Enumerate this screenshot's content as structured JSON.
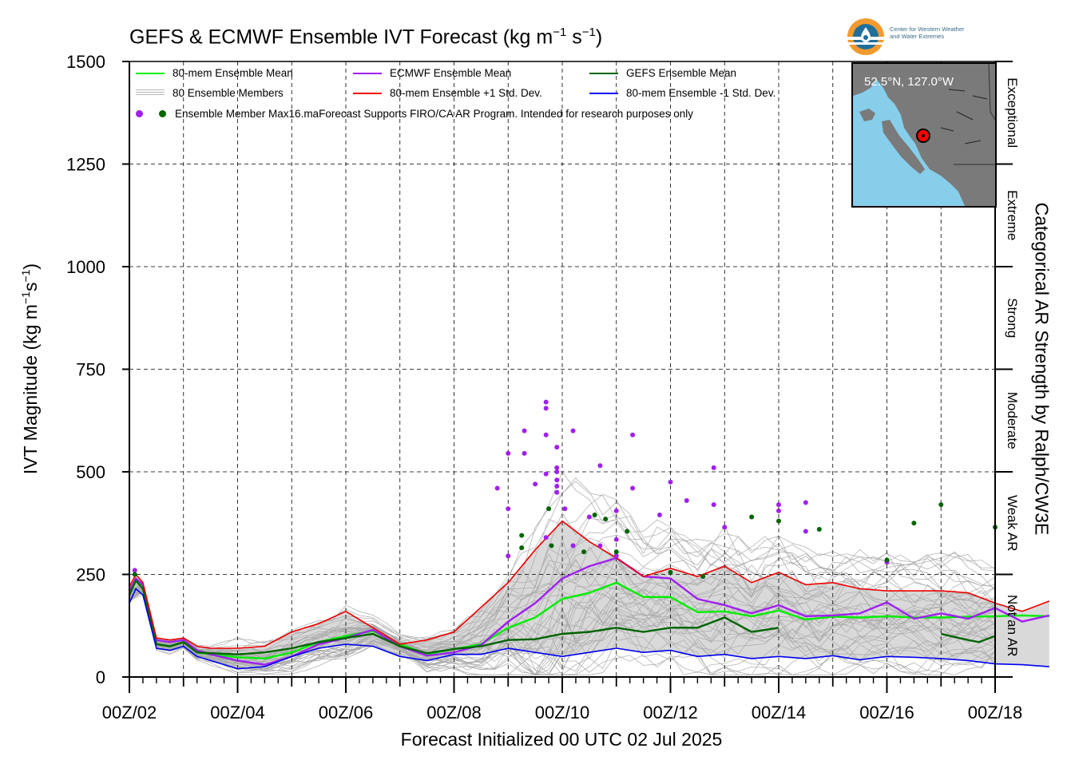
{
  "chart_data": {
    "type": "line",
    "title": "GEFS & ECMWF Ensemble IVT Forecast (kg m",
    "title_unit_exp1": "−1",
    "title_mid": " s",
    "title_unit_exp2": "−1",
    "title_end": ")",
    "xlabel": "Forecast Initialized 00 UTC 02 Jul 2025",
    "ylabel_main": "IVT Magnitude (kg m",
    "ylabel_exp1": "−1",
    "ylabel_mid": "s",
    "ylabel_exp2": "−1",
    "ylabel_end": ")",
    "right_label": "Categorical AR Strength by Ralph/CW3E",
    "x_ticks": [
      "00Z/02",
      "00Z/04",
      "00Z/06",
      "00Z/08",
      "00Z/10",
      "00Z/12",
      "00Z/14",
      "00Z/16",
      "00Z/18"
    ],
    "x_range_days": [
      0,
      16
    ],
    "ylim": [
      0,
      1500
    ],
    "y_ticks": [
      0,
      250,
      500,
      750,
      1000,
      1250,
      1500
    ],
    "grid": true,
    "categories_ar": [
      {
        "label": "Not an AR",
        "min": 0,
        "max": 250
      },
      {
        "label": "Weak AR",
        "min": 250,
        "max": 500
      },
      {
        "label": "Moderate",
        "min": 500,
        "max": 750
      },
      {
        "label": "Strong",
        "min": 750,
        "max": 1000
      },
      {
        "label": "Extreme",
        "min": 1000,
        "max": 1250
      },
      {
        "label": "Exceptional",
        "min": 1250,
        "max": 1500
      }
    ],
    "legend": {
      "mean80": "80-mem Ensemble Mean",
      "members": "80 Ensemble Members",
      "maxdots": "Ensemble Member Max16.maForecast Supports FIRO/CA AR Program. Intended for research purposes only",
      "ecmwf": "ECMWF Ensemble Mean",
      "plus1": "80-mem Ensemble +1 Std. Dev.",
      "gefs": "GEFS Ensemble Mean",
      "minus1": "80-mem Ensemble -1 Std. Dev."
    },
    "series": [
      {
        "name": "80-mem Ensemble Mean",
        "color": "#00ee00",
        "x": [
          0,
          0.12,
          0.25,
          0.5,
          0.75,
          1,
          1.25,
          1.5,
          2,
          2.5,
          3,
          3.5,
          4,
          4.5,
          5,
          5.5,
          6,
          6.5,
          7,
          7.5,
          8,
          8.5,
          9,
          9.5,
          10,
          10.5,
          11,
          11.5,
          12,
          12.5,
          13,
          13.5,
          14,
          14.5,
          15,
          15.5,
          16,
          16.5,
          17
        ],
        "y": [
          200,
          235,
          220,
          80,
          75,
          85,
          60,
          55,
          48,
          45,
          60,
          85,
          100,
          112,
          80,
          55,
          68,
          80,
          120,
          145,
          190,
          205,
          230,
          195,
          195,
          158,
          160,
          148,
          162,
          140,
          147,
          145,
          148,
          145,
          145,
          147,
          148,
          150,
          148
        ]
      },
      {
        "name": "ECMWF Ensemble Mean",
        "color": "#a020f0",
        "x": [
          0,
          0.12,
          0.25,
          0.5,
          0.75,
          1,
          1.25,
          1.5,
          2,
          2.5,
          3,
          3.5,
          4,
          4.5,
          5,
          5.5,
          6,
          6.5,
          7,
          7.5,
          8,
          8.5,
          9,
          9.5,
          10,
          10.5,
          11,
          11.5,
          12,
          12.5,
          13,
          13.5,
          14,
          14.5,
          15,
          15.5,
          16,
          16.5,
          17
        ],
        "y": [
          210,
          240,
          225,
          90,
          85,
          90,
          65,
          55,
          40,
          30,
          50,
          80,
          95,
          115,
          75,
          52,
          60,
          78,
          135,
          180,
          240,
          270,
          290,
          245,
          240,
          190,
          175,
          155,
          175,
          148,
          150,
          155,
          182,
          142,
          155,
          142,
          168,
          135,
          150
        ]
      },
      {
        "name": "GEFS Ensemble Mean",
        "color": "#006400",
        "x": [
          0,
          0.12,
          0.25,
          0.5,
          0.75,
          1,
          1.25,
          1.5,
          2,
          2.5,
          3,
          3.5,
          4,
          4.5,
          5,
          5.5,
          6,
          6.5,
          7,
          7.5,
          8,
          8.5,
          9,
          9.5,
          10,
          10.5,
          11,
          11.5,
          12
        ],
        "y": [
          200,
          235,
          215,
          80,
          75,
          85,
          60,
          58,
          55,
          60,
          70,
          85,
          95,
          105,
          75,
          58,
          68,
          75,
          90,
          92,
          105,
          110,
          120,
          110,
          120,
          120,
          145,
          110,
          120
        ],
        "x2": [
          15,
          15.5,
          15.7,
          16
        ],
        "y2": [
          105,
          90,
          85,
          100
        ]
      },
      {
        "name": "80-mem Ensemble +1 Std. Dev.",
        "color": "#ee0000",
        "x": [
          0,
          0.12,
          0.25,
          0.5,
          0.75,
          1,
          1.25,
          1.5,
          2,
          2.5,
          3,
          3.5,
          4,
          4.5,
          5,
          5.5,
          6,
          6.5,
          7,
          7.5,
          8,
          8.5,
          9,
          9.5,
          10,
          10.5,
          11,
          11.5,
          12,
          12.5,
          13,
          13.5,
          14,
          14.5,
          15,
          15.5,
          16,
          16.5,
          17
        ],
        "y": [
          220,
          250,
          230,
          95,
          90,
          95,
          75,
          70,
          70,
          75,
          110,
          130,
          160,
          120,
          80,
          90,
          110,
          170,
          230,
          310,
          380,
          330,
          290,
          245,
          265,
          245,
          270,
          230,
          255,
          225,
          230,
          215,
          210,
          210,
          210,
          205,
          180,
          160,
          185
        ]
      },
      {
        "name": "80-mem Ensemble -1 Std. Dev.",
        "color": "#0000ee",
        "x": [
          0,
          0.12,
          0.25,
          0.5,
          0.75,
          1,
          1.25,
          1.5,
          2,
          2.5,
          3,
          3.5,
          4,
          4.5,
          5,
          5.5,
          6,
          6.5,
          7,
          7.5,
          8,
          8.5,
          9,
          9.5,
          10,
          10.5,
          11,
          11.5,
          12,
          12.5,
          13,
          13.5,
          14,
          14.5,
          15,
          15.5,
          16,
          16.5,
          17
        ],
        "y": [
          180,
          215,
          200,
          70,
          65,
          75,
          50,
          40,
          20,
          25,
          50,
          70,
          80,
          75,
          50,
          40,
          55,
          55,
          70,
          60,
          50,
          60,
          70,
          60,
          65,
          50,
          55,
          45,
          50,
          45,
          52,
          42,
          50,
          48,
          45,
          40,
          32,
          30,
          25
        ]
      }
    ],
    "max_points_ecmwf": [
      [
        0.1,
        260
      ],
      [
        6.8,
        460
      ],
      [
        7,
        545
      ],
      [
        7,
        410
      ],
      [
        7,
        295
      ],
      [
        7.3,
        545
      ],
      [
        7.3,
        600
      ],
      [
        7.5,
        470
      ],
      [
        7.7,
        670
      ],
      [
        7.7,
        655
      ],
      [
        7.7,
        590
      ],
      [
        7.7,
        495
      ],
      [
        7.7,
        340
      ],
      [
        7.9,
        560
      ],
      [
        7.9,
        510
      ],
      [
        7.9,
        500
      ],
      [
        7.9,
        480
      ],
      [
        7.9,
        465
      ],
      [
        7.9,
        450
      ],
      [
        8.05,
        410
      ],
      [
        8.2,
        600
      ],
      [
        8.2,
        320
      ],
      [
        8.5,
        390
      ],
      [
        8.7,
        515
      ],
      [
        8.7,
        320
      ],
      [
        9,
        405
      ],
      [
        9,
        335
      ],
      [
        9,
        295
      ],
      [
        9.3,
        460
      ],
      [
        9.3,
        590
      ],
      [
        9.8,
        395
      ],
      [
        10,
        475
      ],
      [
        10.3,
        430
      ],
      [
        10.8,
        510
      ],
      [
        10.8,
        420
      ],
      [
        11,
        365
      ],
      [
        12,
        420
      ],
      [
        12,
        405
      ],
      [
        12.5,
        425
      ],
      [
        12.5,
        355
      ],
      [
        14,
        280
      ]
    ],
    "max_points_gefs": [
      [
        0.1,
        250
      ],
      [
        7.25,
        345
      ],
      [
        7.25,
        315
      ],
      [
        7.75,
        410
      ],
      [
        7.8,
        320
      ],
      [
        8.4,
        305
      ],
      [
        8.6,
        395
      ],
      [
        8.8,
        385
      ],
      [
        9,
        305
      ],
      [
        9.2,
        355
      ],
      [
        10,
        255
      ],
      [
        10.6,
        245
      ],
      [
        11.5,
        390
      ],
      [
        12,
        380
      ],
      [
        12.75,
        360
      ],
      [
        14,
        285
      ],
      [
        14.5,
        375
      ],
      [
        15,
        420
      ],
      [
        16,
        365
      ]
    ]
  },
  "inset": {
    "coord": "52.5°N, 127.0°W"
  },
  "logo": {
    "line1": "Center for Western Weather",
    "line2": "and Water Extremes"
  }
}
